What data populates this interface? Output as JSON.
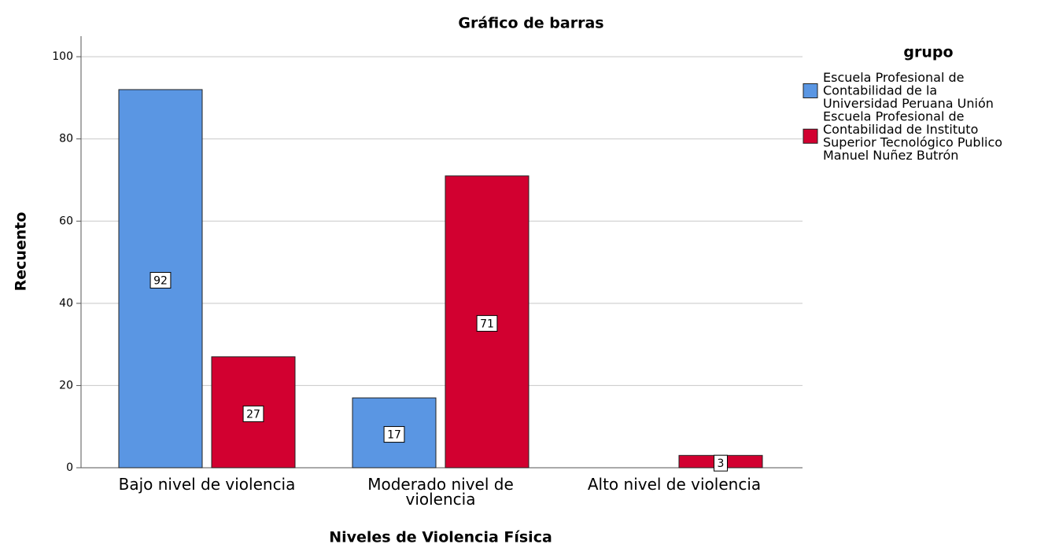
{
  "chart_data": {
    "type": "bar",
    "title": "Gráfico de barras",
    "x_label": "Niveles de Violencia Física",
    "y_label": "Recuento",
    "legend_title": "grupo",
    "legend": "right",
    "grid": true,
    "categories": [
      "Bajo nivel de violencia",
      "Moderado nivel de violencia",
      "Alto nivel de violencia"
    ],
    "series": [
      {
        "name": "Escuela Profesional de Contabilidad de la Universidad Peruana Unión",
        "color": "#5a96e3",
        "values": [
          92,
          17,
          null
        ]
      },
      {
        "name": "Escuela Profesional de Contabilidad de Instituto Superior Tecnológico Publico Manuel Nuñez Butrón",
        "color": "#d20030",
        "values": [
          27,
          71,
          3
        ]
      }
    ],
    "ylim": [
      0,
      105
    ],
    "yticks": [
      0,
      20,
      40,
      60,
      80,
      100
    ]
  }
}
